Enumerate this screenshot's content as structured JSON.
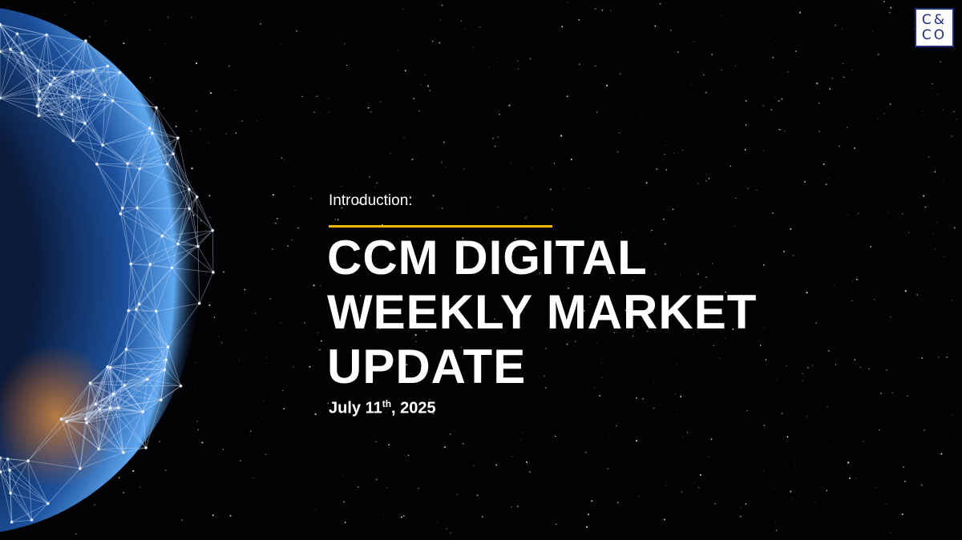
{
  "logo": {
    "line1": "C&",
    "line2": "CO",
    "border_color": "#1d2d7a"
  },
  "slide": {
    "intro": "Introduction:",
    "title_lines": [
      "CCM DIGITAL",
      "WEEKLY MARKET",
      "UPDATE"
    ],
    "date": {
      "month_day": "July 11",
      "suffix": "th",
      "year": ", 2025"
    },
    "accent_color": "#f2b600"
  },
  "background": {
    "image": "starfield-with-networked-globe"
  }
}
